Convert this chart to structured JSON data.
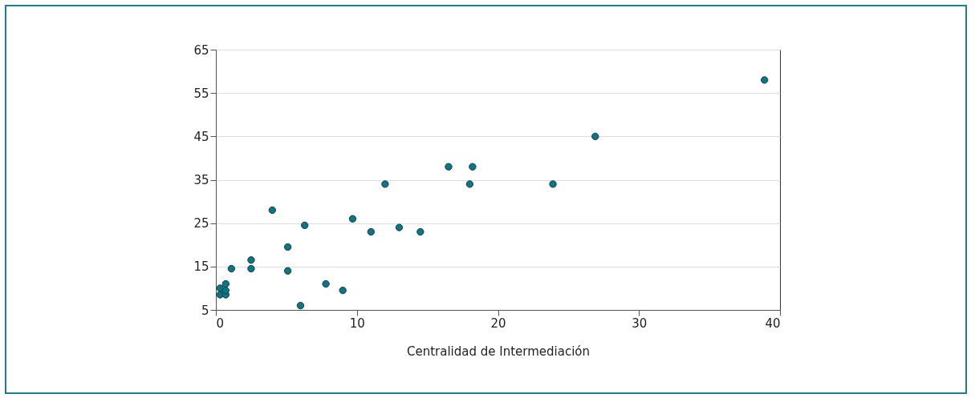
{
  "chart_data": {
    "type": "scatter",
    "xlabel": "Centralidad de Intermediación",
    "x": [
      0.3,
      0.3,
      0.7,
      0.7,
      0.7,
      1.1,
      2.5,
      2.5,
      4,
      5.1,
      5.1,
      6,
      6.3,
      7.8,
      9,
      9.7,
      11,
      12,
      13,
      14.5,
      16.5,
      18,
      18.2,
      23.9,
      26.9,
      38.9
    ],
    "values": [
      8.5,
      10,
      8.5,
      9.5,
      11,
      14.5,
      14.5,
      16.5,
      28,
      14,
      19.5,
      6,
      24.5,
      11,
      9.5,
      26,
      23,
      34,
      24,
      23,
      38,
      34,
      38,
      34,
      45,
      58
    ],
    "color": "#007a8a",
    "marker": "circle",
    "xlim": [
      0,
      40
    ],
    "xticks": [
      0,
      10,
      20,
      30,
      40
    ],
    "ylim": [
      5,
      65
    ],
    "yticks": [
      5,
      15,
      25,
      35,
      45,
      55,
      65
    ],
    "grid": "y"
  }
}
